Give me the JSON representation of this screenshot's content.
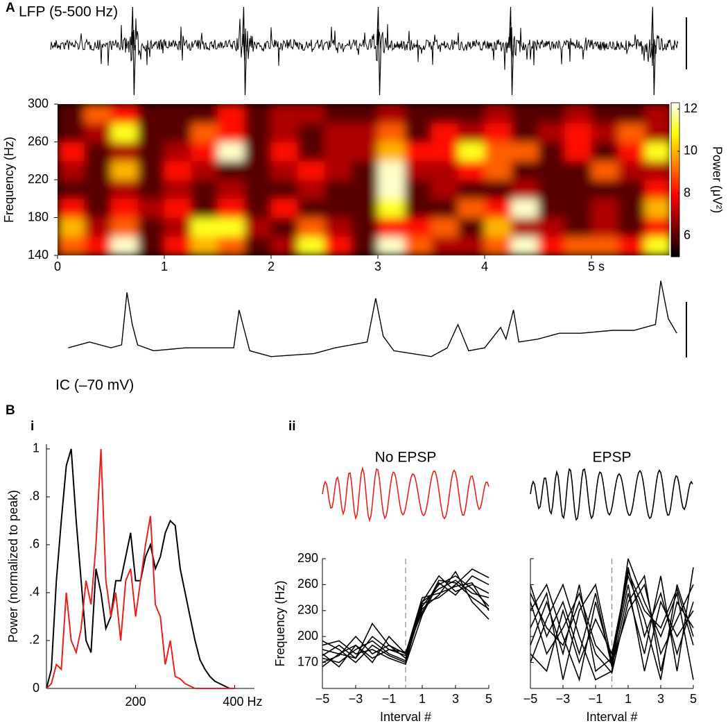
{
  "panel_labels": [
    "A",
    "B",
    "i",
    "ii"
  ],
  "chart_data": [
    {
      "type": "trace",
      "label": "LFP (5-500 Hz)",
      "events": [
        0.71,
        1.75,
        3.01,
        4.25,
        5.58
      ],
      "xlim": [
        0,
        5.73
      ]
    },
    {
      "type": "heatmap",
      "ylabel": "Frequency (Hz)",
      "x": [
        0.125,
        0.375,
        0.625,
        0.875,
        1.125,
        1.375,
        1.625,
        1.875,
        2.125,
        2.375,
        2.625,
        2.875,
        3.125,
        3.375,
        3.625,
        3.875,
        4.125,
        4.375,
        4.625,
        4.875,
        5.125,
        5.375,
        5.625
      ],
      "y": [
        150,
        170,
        190,
        210,
        230,
        250,
        270,
        290
      ],
      "z": [
        [
          9,
          8,
          12,
          6,
          8,
          10,
          9,
          6,
          7,
          11,
          8,
          6,
          12,
          9,
          7,
          7,
          9,
          12,
          8,
          9,
          9,
          8,
          11
        ],
        [
          10,
          7,
          9,
          6,
          7,
          11,
          11,
          7,
          6,
          9,
          7,
          6,
          8,
          8,
          9,
          6,
          10,
          7,
          7,
          6,
          7,
          6,
          8
        ],
        [
          8,
          6,
          8,
          7,
          8,
          6,
          8,
          6,
          8,
          6,
          6,
          6,
          11,
          6,
          6,
          9,
          8,
          12,
          6,
          6,
          7,
          6,
          10
        ],
        [
          6,
          6,
          7,
          6,
          7,
          6,
          7,
          6,
          6,
          7,
          6,
          6,
          12,
          6,
          7,
          6,
          6,
          7,
          6,
          6,
          6,
          6,
          8
        ],
        [
          7,
          6,
          10,
          6,
          8,
          7,
          6,
          6,
          7,
          8,
          7,
          6,
          12,
          7,
          7,
          8,
          9,
          6,
          6,
          6,
          9,
          7,
          7
        ],
        [
          8,
          6,
          7,
          6,
          7,
          8,
          12,
          6,
          8,
          6,
          7,
          7,
          10,
          8,
          8,
          11,
          9,
          9,
          6,
          8,
          6,
          8,
          11
        ],
        [
          6,
          7,
          11,
          6,
          6,
          9,
          8,
          6,
          7,
          6,
          7,
          7,
          9,
          6,
          8,
          7,
          8,
          6,
          7,
          8,
          7,
          9,
          7
        ],
        [
          6,
          9,
          8,
          6,
          6,
          6,
          8,
          6,
          7,
          7,
          6,
          6,
          7,
          6,
          6,
          6,
          7,
          6,
          6,
          7,
          6,
          6,
          7
        ]
      ],
      "xlim": [
        0,
        5.73
      ],
      "ylim": [
        140,
        300
      ],
      "xticks": [
        0,
        1,
        2,
        3,
        4,
        {
          "value": 5,
          "label": "5 s"
        }
      ],
      "yticks": [
        140,
        180,
        220,
        260,
        300
      ],
      "colormap": "hot",
      "colorbar": {
        "label": "Power (μV²)",
        "clim": [
          5,
          12.3
        ],
        "ticks": [
          6,
          8,
          10,
          12
        ]
      }
    },
    {
      "type": "line",
      "label": "IC (–70 mV)",
      "color": "#000000",
      "xlim": [
        0,
        5.73
      ],
      "x": [
        0.1,
        0.3,
        0.5,
        0.6,
        0.65,
        0.7,
        0.75,
        0.9,
        1.2,
        1.5,
        1.65,
        1.7,
        1.75,
        1.8,
        2.0,
        2.4,
        2.6,
        2.9,
        2.98,
        3.05,
        3.15,
        3.5,
        3.65,
        3.75,
        3.85,
        4.0,
        4.15,
        4.2,
        4.27,
        4.32,
        4.5,
        4.7,
        4.9,
        5.2,
        5.4,
        5.6,
        5.65,
        5.72,
        5.8
      ],
      "values": [
        4,
        6,
        4,
        5,
        23,
        12,
        5,
        3,
        4,
        4,
        4,
        17,
        10,
        3,
        1,
        2,
        4,
        6,
        21,
        8,
        3,
        1,
        4,
        12,
        3,
        4,
        11,
        7,
        17,
        6,
        7,
        9,
        9,
        10,
        10,
        12,
        27,
        14,
        9
      ]
    },
    {
      "type": "line",
      "ylabel": "Power (normalized to peak)",
      "x": [
        20,
        30,
        40,
        50,
        60,
        70,
        80,
        90,
        100,
        110,
        120,
        130,
        140,
        150,
        160,
        170,
        180,
        190,
        200,
        210,
        220,
        230,
        240,
        250,
        260,
        270,
        280,
        290,
        300,
        310,
        320,
        330,
        340,
        350,
        360,
        370,
        380,
        390,
        400
      ],
      "series": [
        {
          "color": "#000000",
          "values": [
            0,
            0.08,
            0.45,
            0.7,
            0.93,
            1,
            0.7,
            0.45,
            0.2,
            0.15,
            0.5,
            0.4,
            0.25,
            0.3,
            0.45,
            0.45,
            0.55,
            0.65,
            0.45,
            0.45,
            0.55,
            0.6,
            0.5,
            0.55,
            0.65,
            0.7,
            0.68,
            0.5,
            0.4,
            0.3,
            0.2,
            0.12,
            0.08,
            0.05,
            0.03,
            0.02,
            0.01,
            0,
            0
          ]
        },
        {
          "color": "#e8201c",
          "values": [
            0,
            0.02,
            0.1,
            0.08,
            0.4,
            0.2,
            0.15,
            0.25,
            0.45,
            0.35,
            0.6,
            1,
            0.45,
            0.3,
            0.4,
            0.2,
            0.45,
            0.5,
            0.3,
            0.45,
            0.6,
            0.72,
            0.35,
            0.3,
            0.1,
            0.2,
            0.05,
            0.04,
            0.02,
            0.01,
            0,
            0,
            0,
            0,
            0,
            0,
            0,
            0,
            0
          ]
        }
      ],
      "xlim": [
        20,
        440
      ],
      "ylim": [
        0,
        1.02
      ],
      "xticks": [
        200,
        {
          "value": 400,
          "label": "400 Hz"
        }
      ],
      "yticks": [
        0,
        {
          "value": 0.2,
          "label": ".2"
        },
        {
          "value": 0.4,
          "label": ".4"
        },
        {
          "value": 0.6,
          "label": ".6"
        },
        {
          "value": 0.8,
          "label": ".8"
        },
        1
      ]
    },
    {
      "type": "multiline",
      "title": "No EPSP",
      "waveform_color": "#e8201c",
      "color": "#000000",
      "xlabel": "Interval #",
      "ylabel": "Frequency (Hz)",
      "x": [
        -5,
        -4,
        -3,
        -2,
        -1,
        0,
        1,
        2,
        3,
        4,
        5
      ],
      "series": [
        {
          "values": [
            185,
            180,
            190,
            175,
            185,
            178,
            240,
            255,
            265,
            250,
            245
          ]
        },
        {
          "values": [
            175,
            170,
            185,
            195,
            180,
            172,
            235,
            260,
            270,
            255,
            235
          ]
        },
        {
          "values": [
            165,
            180,
            175,
            215,
            190,
            180,
            245,
            250,
            258,
            262,
            230
          ]
        },
        {
          "values": [
            190,
            195,
            180,
            185,
            175,
            168,
            225,
            262,
            248,
            270,
            260
          ]
        },
        {
          "values": [
            170,
            178,
            200,
            180,
            190,
            175,
            232,
            248,
            275,
            240,
            220
          ]
        },
        {
          "values": [
            180,
            165,
            190,
            170,
            200,
            180,
            240,
            270,
            252,
            260,
            250
          ]
        },
        {
          "values": [
            195,
            185,
            170,
            190,
            178,
            170,
            238,
            245,
            260,
            278,
            268
          ]
        },
        {
          "values": [
            178,
            190,
            175,
            200,
            185,
            182,
            228,
            265,
            262,
            245,
            232
          ]
        }
      ],
      "vline": 0,
      "xlim": [
        -5,
        5
      ],
      "ylim": [
        140,
        290
      ],
      "xticks": [
        {
          "value": -5,
          "label": "−5"
        },
        {
          "value": -3,
          "label": "−3"
        },
        {
          "value": -1,
          "label": "−1"
        },
        1,
        3,
        5
      ],
      "yticks": [
        170,
        200,
        230,
        260,
        290
      ]
    },
    {
      "type": "multiline",
      "title": "EPSP",
      "waveform_color": "#000000",
      "color": "#000000",
      "xlabel": "Interval #",
      "x": [
        -5,
        -4,
        -3,
        -2,
        -1,
        0,
        1,
        2,
        3,
        4,
        5
      ],
      "series": [
        {
          "values": [
            230,
            260,
            200,
            150,
            240,
            170,
            280,
            200,
            250,
            180,
            240
          ]
        },
        {
          "values": [
            190,
            240,
            180,
            260,
            160,
            175,
            270,
            220,
            150,
            260,
            200
          ]
        },
        {
          "values": [
            260,
            200,
            240,
            180,
            250,
            165,
            250,
            180,
            270,
            160,
            280
          ]
        },
        {
          "values": [
            170,
            220,
            260,
            200,
            150,
            160,
            290,
            240,
            200,
            250,
            150
          ]
        },
        {
          "values": [
            240,
            180,
            210,
            250,
            190,
            168,
            230,
            260,
            180,
            220,
            260
          ]
        },
        {
          "values": [
            210,
            250,
            150,
            230,
            260,
            172,
            260,
            160,
            240,
            200,
            230
          ]
        },
        {
          "values": [
            180,
            160,
            230,
            170,
            220,
            180,
            275,
            230,
            210,
            255,
            190
          ]
        },
        {
          "values": [
            250,
            210,
            190,
            240,
            180,
            158,
            240,
            270,
            160,
            240,
            210
          ]
        }
      ],
      "vline": 0,
      "xlim": [
        -5,
        5
      ],
      "ylim": [
        140,
        290
      ],
      "xticks": [
        {
          "value": -5,
          "label": "−5"
        },
        {
          "value": -3,
          "label": "−3"
        },
        {
          "value": -1,
          "label": "−1"
        },
        1,
        3,
        5
      ],
      "yticks": [
        170,
        200,
        230,
        260,
        290
      ]
    }
  ]
}
